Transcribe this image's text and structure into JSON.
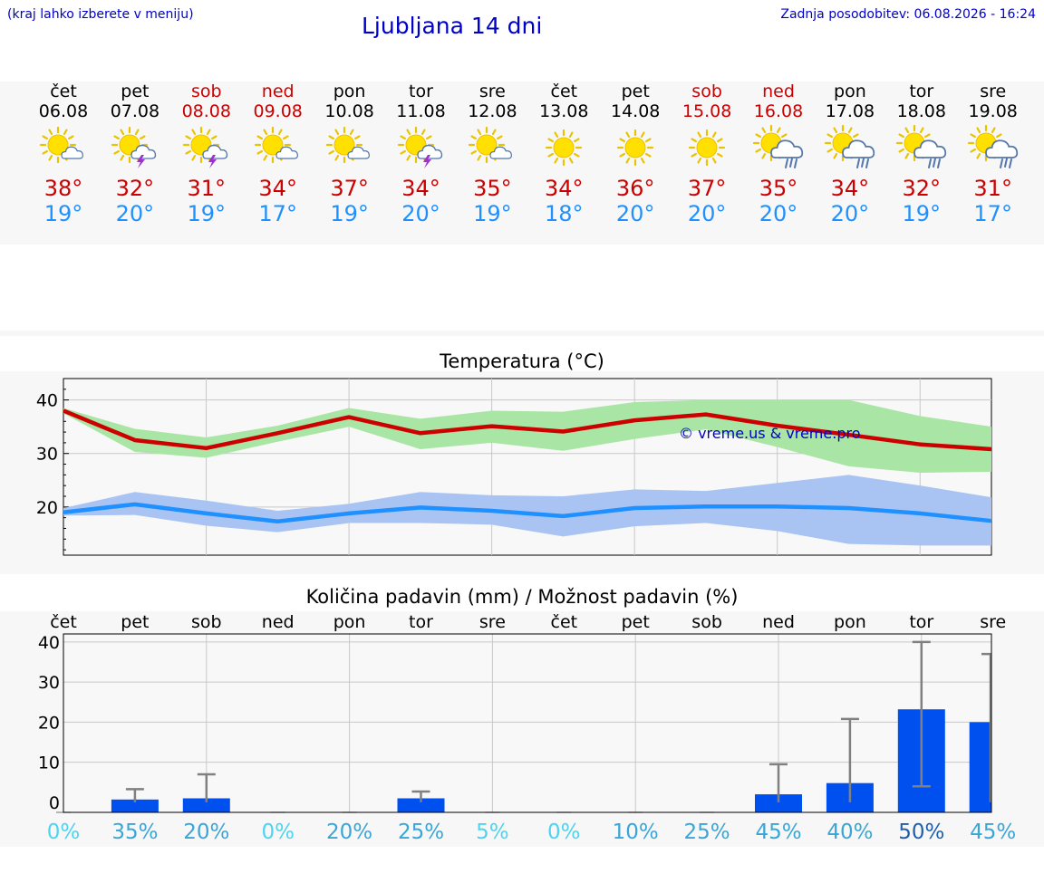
{
  "header": {
    "hint": "(kraj lahko izberete v meniju)",
    "title": "Ljubljana 14 dni",
    "updated": "Zadnja posodobitev: 06.08.2026 - 16:24"
  },
  "colors": {
    "weekday": "#000000",
    "weekend": "#cc0000",
    "tmax": "#cc0000",
    "tmin": "#1e90ff",
    "tmax_band": "#a9e5a4",
    "tmin_band": "#a9c4f3",
    "bar": "#0050f0",
    "error_bar": "#808080",
    "watermark": "#0000cc"
  },
  "forecast": {
    "days": [
      {
        "name": "čet",
        "date": "06.08",
        "weekend": false,
        "icon": "sun-cloud-icon",
        "tmax": "38°",
        "tmin": "19°"
      },
      {
        "name": "pet",
        "date": "07.08",
        "weekend": false,
        "icon": "sun-storm-icon",
        "tmax": "32°",
        "tmin": "20°"
      },
      {
        "name": "sob",
        "date": "08.08",
        "weekend": true,
        "icon": "sun-storm-icon",
        "tmax": "31°",
        "tmin": "19°"
      },
      {
        "name": "ned",
        "date": "09.08",
        "weekend": true,
        "icon": "sun-cloud-icon",
        "tmax": "34°",
        "tmin": "17°"
      },
      {
        "name": "pon",
        "date": "10.08",
        "weekend": false,
        "icon": "sun-cloud-icon",
        "tmax": "37°",
        "tmin": "19°"
      },
      {
        "name": "tor",
        "date": "11.08",
        "weekend": false,
        "icon": "sun-storm-icon",
        "tmax": "34°",
        "tmin": "20°"
      },
      {
        "name": "sre",
        "date": "12.08",
        "weekend": false,
        "icon": "sun-cloud-icon",
        "tmax": "35°",
        "tmin": "19°"
      },
      {
        "name": "čet",
        "date": "13.08",
        "weekend": false,
        "icon": "sun-icon",
        "tmax": "34°",
        "tmin": "18°"
      },
      {
        "name": "pet",
        "date": "14.08",
        "weekend": false,
        "icon": "sun-icon",
        "tmax": "36°",
        "tmin": "20°"
      },
      {
        "name": "sob",
        "date": "15.08",
        "weekend": true,
        "icon": "sun-icon",
        "tmax": "37°",
        "tmin": "20°"
      },
      {
        "name": "ned",
        "date": "16.08",
        "weekend": true,
        "icon": "sun-cloud-rain-icon",
        "tmax": "35°",
        "tmin": "20°"
      },
      {
        "name": "pon",
        "date": "17.08",
        "weekend": false,
        "icon": "sun-cloud-rain-icon",
        "tmax": "34°",
        "tmin": "20°"
      },
      {
        "name": "tor",
        "date": "18.08",
        "weekend": false,
        "icon": "sun-cloud-rain-icon",
        "tmax": "32°",
        "tmin": "19°"
      },
      {
        "name": "sre",
        "date": "19.08",
        "weekend": false,
        "icon": "sun-cloud-rain-icon",
        "tmax": "31°",
        "tmin": "17°"
      }
    ]
  },
  "chart_data": [
    {
      "type": "line",
      "title": "Temperatura (°C)",
      "watermark": "© vreme.us & vreme.pro",
      "x": [
        "06.08",
        "07.08",
        "08.08",
        "09.08",
        "10.08",
        "11.08",
        "12.08",
        "13.08",
        "14.08",
        "15.08",
        "16.08",
        "17.08",
        "18.08",
        "19.08"
      ],
      "yticks": [
        20,
        30,
        40
      ],
      "ylim": [
        11,
        44
      ],
      "grid": true,
      "series": [
        {
          "key": "tmax",
          "values": [
            38,
            32.5,
            31,
            33.8,
            36.8,
            33.8,
            35.1,
            34.1,
            36.2,
            37.3,
            35.2,
            33.5,
            31.7,
            30.8
          ],
          "band_low": [
            37.5,
            30.3,
            29.2,
            32.2,
            35.0,
            30.8,
            32.0,
            30.5,
            32.7,
            34.5,
            31.2,
            27.6,
            26.4,
            26.6
          ],
          "band_high": [
            38.5,
            34.6,
            33.0,
            35.2,
            38.5,
            36.5,
            38.0,
            37.8,
            39.6,
            40.0,
            40.0,
            40.0,
            37.0,
            35.0
          ]
        },
        {
          "key": "tmin",
          "values": [
            19.0,
            20.5,
            18.8,
            17.3,
            18.8,
            19.9,
            19.3,
            18.3,
            19.8,
            20.1,
            20.1,
            19.8,
            18.8,
            17.4
          ],
          "band_low": [
            18.4,
            18.5,
            16.5,
            15.3,
            17.0,
            17.0,
            16.7,
            14.5,
            16.4,
            17.0,
            15.5,
            13.1,
            12.8,
            12.8
          ],
          "band_high": [
            19.8,
            22.8,
            21.2,
            19.3,
            20.6,
            22.8,
            22.2,
            22.0,
            23.3,
            23.0,
            24.5,
            26.0,
            24.0,
            21.8
          ]
        }
      ]
    },
    {
      "type": "bar",
      "title": "Količina padavin (mm) / Možnost padavin (%)",
      "categories": [
        "čet",
        "pet",
        "sob",
        "ned",
        "pon",
        "tor",
        "sre",
        "čet",
        "pet",
        "sob",
        "ned",
        "pon",
        "tor",
        "sre"
      ],
      "values": [
        0,
        0.7,
        1.0,
        0,
        0,
        1.0,
        0,
        0,
        0,
        0,
        2.0,
        4.8,
        23.2,
        20.0
      ],
      "error_low": [
        0,
        0,
        0,
        0,
        0,
        0,
        0,
        0,
        0,
        0,
        0,
        0,
        4.0,
        0
      ],
      "error_high": [
        0,
        3.3,
        7.0,
        0,
        0,
        2.7,
        0,
        0,
        0,
        0,
        9.5,
        20.8,
        40.0,
        37.0
      ],
      "yticks": [
        0,
        10,
        20,
        30,
        40
      ],
      "ylim": [
        -2.5,
        42
      ],
      "grid": true,
      "probability": [
        "0%",
        "35%",
        "20%",
        "0%",
        "20%",
        "25%",
        "5%",
        "0%",
        "10%",
        "25%",
        "45%",
        "40%",
        "50%",
        "45%"
      ],
      "probability_colors": [
        "#4dd4f0",
        "#3aa6d8",
        "#3aa6d8",
        "#4dd4f0",
        "#3aa6d8",
        "#3aa6d8",
        "#4dd4f0",
        "#4dd4f0",
        "#3aa6d8",
        "#3aa6d8",
        "#3aa6d8",
        "#3aa6d8",
        "#1f5fae",
        "#3aa6d8"
      ]
    }
  ]
}
